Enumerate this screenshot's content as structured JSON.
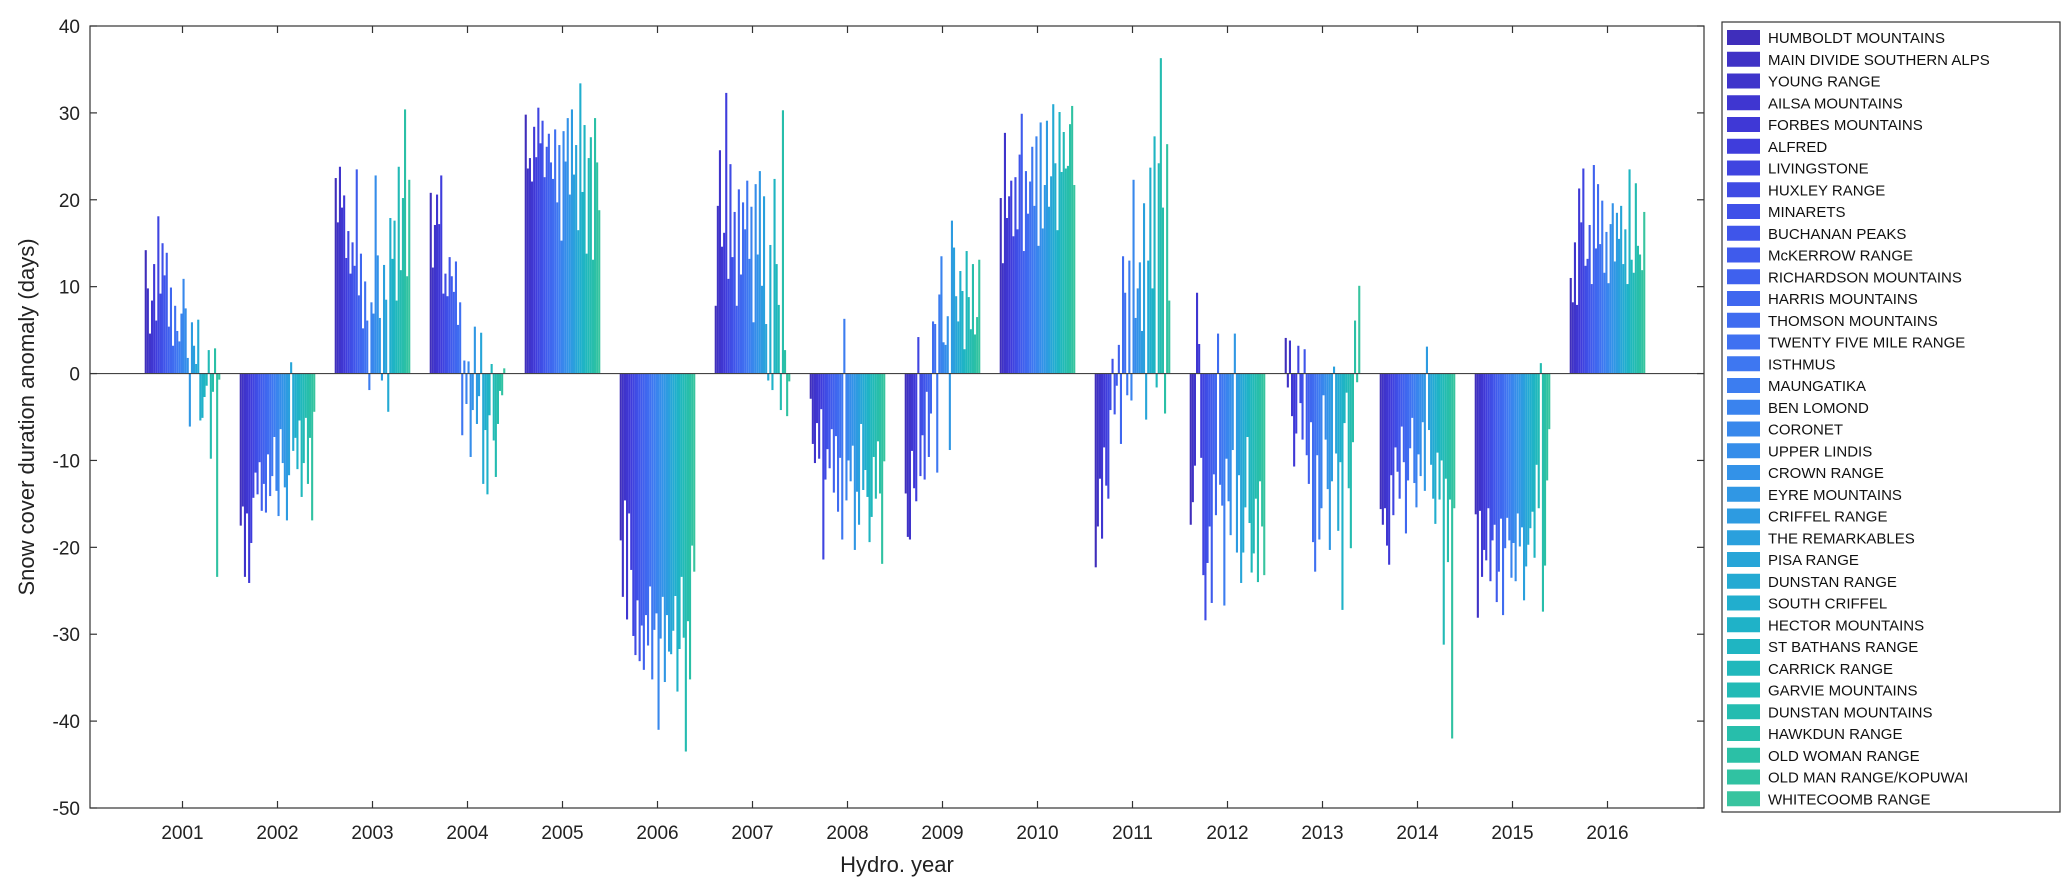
{
  "chart_data": {
    "type": "bar",
    "title": "",
    "xlabel": "Hydro. year",
    "ylabel": "Snow cover duration anomaly (days)",
    "ylim": [
      -50,
      40
    ],
    "yticks": [
      -50,
      -40,
      -30,
      -20,
      -10,
      0,
      10,
      20,
      30,
      40
    ],
    "grid": false,
    "legend_position": "right-outside",
    "categories": [
      "2001",
      "2002",
      "2003",
      "2004",
      "2005",
      "2006",
      "2007",
      "2008",
      "2009",
      "2010",
      "2011",
      "2012",
      "2013",
      "2014",
      "2015",
      "2016"
    ],
    "series": [
      {
        "name": "HUMBOLDT MOUNTAINS",
        "values": [
          14.2,
          -17.5,
          22.5,
          20.8,
          29.8,
          -19.2,
          7.8,
          -2.9,
          -13.8,
          20.2,
          -22.3,
          -17.4,
          4.1,
          -15.6,
          -16.2,
          11.0
        ]
      },
      {
        "name": "MAIN DIVIDE SOUTHERN ALPS",
        "values": [
          9.8,
          -15.3,
          17.4,
          12.2,
          23.6,
          -25.7,
          19.3,
          -8.1,
          -18.8,
          12.7,
          -17.6,
          -14.8,
          -1.6,
          -17.4,
          -28.1,
          8.2
        ]
      },
      {
        "name": "YOUNG RANGE",
        "values": [
          4.6,
          -23.4,
          23.8,
          17.1,
          24.8,
          -14.6,
          25.7,
          -10.3,
          -19.1,
          27.7,
          -12.1,
          -10.6,
          3.8,
          -15.5,
          -15.8,
          15.1
        ]
      },
      {
        "name": "AILSA MOUNTAINS",
        "values": [
          8.4,
          -16.1,
          19.1,
          20.6,
          22.1,
          -28.3,
          14.6,
          -5.7,
          -8.9,
          17.9,
          -19.0,
          9.3,
          -4.9,
          -19.8,
          -23.4,
          7.9
        ]
      },
      {
        "name": "FORBES MOUNTAINS",
        "values": [
          12.6,
          -24.1,
          20.5,
          17.2,
          28.4,
          -16.1,
          16.2,
          -9.8,
          -13.2,
          20.4,
          -8.5,
          3.4,
          -10.7,
          -22.0,
          -20.3,
          21.3
        ]
      },
      {
        "name": "ALFRED",
        "values": [
          6.1,
          -19.5,
          13.3,
          22.8,
          24.9,
          -22.6,
          32.3,
          -4.1,
          -14.7,
          22.2,
          -12.9,
          -9.7,
          -6.9,
          -11.7,
          -21.5,
          17.4
        ]
      },
      {
        "name": "LIVINGSTONE",
        "values": [
          18.1,
          -14.3,
          16.4,
          9.2,
          30.6,
          -30.2,
          10.9,
          -21.4,
          4.2,
          15.8,
          -14.4,
          -23.2,
          3.2,
          -16.3,
          -15.5,
          23.6
        ]
      },
      {
        "name": "HUXLEY RANGE",
        "values": [
          9.2,
          -11.4,
          11.5,
          11.5,
          26.5,
          -32.4,
          24.1,
          -12.2,
          -11.8,
          22.6,
          -4.2,
          -28.4,
          -3.4,
          -8.5,
          -23.9,
          12.4
        ]
      },
      {
        "name": "MINARETS",
        "values": [
          15.0,
          -13.9,
          15.1,
          8.9,
          29.1,
          -26.1,
          13.4,
          -8.7,
          -7.1,
          16.6,
          1.7,
          -21.8,
          -7.6,
          -11.3,
          -19.2,
          13.2
        ]
      },
      {
        "name": "BUCHANAN PEAKS",
        "values": [
          11.3,
          -10.2,
          12.4,
          13.4,
          22.6,
          -33.1,
          18.6,
          -10.9,
          -12.2,
          25.2,
          -4.7,
          -17.6,
          2.8,
          -14.4,
          -17.4,
          17.1
        ]
      },
      {
        "name": "McKERROW RANGE",
        "values": [
          13.9,
          -15.8,
          23.5,
          11.2,
          26.1,
          -29.0,
          7.8,
          -6.4,
          -2.1,
          29.9,
          -1.4,
          -26.4,
          -9.4,
          -6.1,
          -26.3,
          10.3
        ]
      },
      {
        "name": "RICHARDSON MOUNTAINS",
        "values": [
          5.4,
          -12.7,
          9.0,
          9.4,
          27.6,
          -34.1,
          21.2,
          -13.7,
          -9.6,
          14.1,
          3.3,
          -11.6,
          -12.7,
          -10.2,
          -22.8,
          24.0
        ]
      },
      {
        "name": "HARRIS MOUNTAINS",
        "values": [
          9.9,
          -16.0,
          13.8,
          12.9,
          24.3,
          -27.8,
          11.4,
          -7.2,
          -4.6,
          23.3,
          -8.1,
          -16.3,
          -5.6,
          -18.4,
          -16.7,
          14.4
        ]
      },
      {
        "name": "THOMSON MOUNTAINS",
        "values": [
          3.2,
          -9.3,
          5.2,
          5.6,
          22.4,
          -31.3,
          19.7,
          -15.9,
          6.0,
          18.4,
          13.5,
          4.6,
          -19.4,
          -12.3,
          -27.8,
          21.8
        ]
      },
      {
        "name": "TWENTY FIVE MILE RANGE",
        "values": [
          7.8,
          -14.1,
          10.6,
          8.2,
          28.1,
          -24.5,
          16.6,
          -9.7,
          5.7,
          22.1,
          9.3,
          -12.8,
          -22.8,
          -8.6,
          -20.1,
          14.9
        ]
      },
      {
        "name": "ISTHMUS",
        "values": [
          4.9,
          -11.8,
          6.1,
          -7.1,
          19.7,
          -35.2,
          22.2,
          -19.1,
          -11.4,
          26.1,
          -2.5,
          -15.2,
          -9.4,
          -5.1,
          -16.6,
          19.9
        ]
      },
      {
        "name": "MAUNGATIKA",
        "values": [
          3.7,
          -7.3,
          -1.9,
          1.5,
          26.3,
          -29.5,
          13.2,
          6.3,
          9.1,
          19.3,
          13.0,
          -26.7,
          -19.1,
          -12.6,
          -19.2,
          11.6
        ]
      },
      {
        "name": "BEN LOMOND",
        "values": [
          6.9,
          -13.5,
          8.2,
          -3.5,
          15.3,
          -27.6,
          19.2,
          -14.6,
          13.5,
          27.3,
          -3.1,
          -9.8,
          -15.5,
          -15.4,
          -23.5,
          16.3
        ]
      },
      {
        "name": "CORONET",
        "values": [
          10.9,
          -16.4,
          6.9,
          1.4,
          27.9,
          -41.0,
          5.9,
          -10.0,
          3.6,
          14.7,
          22.3,
          -14.7,
          -2.5,
          -9.3,
          -19.5,
          10.4
        ]
      },
      {
        "name": "UPPER LINDIS",
        "values": [
          7.5,
          -6.4,
          22.8,
          -9.6,
          24.4,
          -30.5,
          21.8,
          -12.4,
          3.3,
          28.9,
          6.4,
          -18.6,
          -7.6,
          -11.8,
          -23.9,
          17.2
        ]
      },
      {
        "name": "CROWN RANGE",
        "values": [
          1.8,
          -10.3,
          13.6,
          -4.2,
          29.4,
          -25.7,
          13.7,
          -8.3,
          6.6,
          16.7,
          9.8,
          -8.8,
          -13.3,
          -5.6,
          -16.1,
          19.6
        ]
      },
      {
        "name": "EYRE MOUNTAINS",
        "values": [
          -6.1,
          -13.1,
          6.4,
          5.4,
          20.6,
          -35.5,
          23.3,
          -20.3,
          -8.8,
          21.7,
          12.8,
          4.6,
          -20.3,
          -13.5,
          -19.9,
          12.9
        ]
      },
      {
        "name": "CRIFFEL RANGE",
        "values": [
          5.9,
          -16.9,
          -0.8,
          -5.8,
          30.4,
          -27.8,
          10.1,
          -13.6,
          17.6,
          29.1,
          4.9,
          -20.6,
          -12.4,
          3.1,
          -17.7,
          18.5
        ]
      },
      {
        "name": "THE REMARKABLES",
        "values": [
          3.2,
          -11.7,
          12.5,
          -2.6,
          22.9,
          -32.0,
          20.4,
          -17.4,
          14.5,
          19.2,
          19.6,
          -11.7,
          0.8,
          -6.5,
          -26.1,
          15.5
        ]
      },
      {
        "name": "PISA RANGE",
        "values": [
          1.1,
          1.3,
          8.5,
          4.7,
          26.3,
          -32.3,
          5.7,
          -5.8,
          8.9,
          22.7,
          -5.3,
          -24.1,
          -9.2,
          -10.5,
          -22.2,
          19.3
        ]
      },
      {
        "name": "DUNSTAN RANGE",
        "values": [
          6.2,
          -8.9,
          -4.4,
          -12.7,
          16.5,
          -29.6,
          -0.8,
          -13.4,
          6.0,
          31.0,
          13.0,
          -20.6,
          -18.1,
          -14.4,
          -19.7,
          12.6
        ]
      },
      {
        "name": "SOUTH CRIFFEL",
        "values": [
          -5.4,
          -7.4,
          17.9,
          -6.5,
          33.4,
          -25.6,
          14.8,
          -11.1,
          11.8,
          24.2,
          23.7,
          -15.4,
          -10.2,
          -17.3,
          -17.8,
          16.6
        ]
      },
      {
        "name": "HECTOR MOUNTAINS",
        "values": [
          -5.1,
          -11.0,
          13.2,
          -13.9,
          20.9,
          -36.6,
          -1.9,
          -14.2,
          9.5,
          16.5,
          9.8,
          -7.3,
          -27.2,
          -9.1,
          -15.9,
          10.3
        ]
      },
      {
        "name": "ST BATHANS RANGE",
        "values": [
          -2.7,
          -5.4,
          17.6,
          -4.8,
          28.6,
          -31.7,
          22.4,
          -19.4,
          2.8,
          30.1,
          27.3,
          -17.2,
          -5.7,
          -14.5,
          -21.2,
          23.5
        ]
      },
      {
        "name": "CARRICK RANGE",
        "values": [
          -1.4,
          -14.2,
          8.4,
          1.1,
          13.8,
          -23.4,
          12.6,
          -16.5,
          14.1,
          23.2,
          -1.6,
          -22.9,
          -2.2,
          -10.0,
          -10.5,
          13.1
        ]
      },
      {
        "name": "GARVIE MOUNTAINS",
        "values": [
          2.7,
          -10.3,
          23.8,
          -7.7,
          24.8,
          -30.4,
          7.9,
          -9.6,
          8.8,
          27.8,
          24.2,
          -20.7,
          -13.2,
          -31.2,
          -15.5,
          11.6
        ]
      },
      {
        "name": "DUNSTAN MOUNTAINS",
        "values": [
          -9.8,
          -5.1,
          11.9,
          -11.9,
          27.2,
          -43.5,
          -4.2,
          -14.4,
          5.1,
          23.6,
          36.3,
          -14.4,
          -20.1,
          -12.1,
          1.2,
          21.9
        ]
      },
      {
        "name": "HAWKDUN RANGE",
        "values": [
          -2.1,
          -12.7,
          20.2,
          -5.8,
          13.1,
          -28.5,
          30.3,
          -7.8,
          12.6,
          23.9,
          19.1,
          -24.0,
          -7.9,
          -21.7,
          -27.4,
          14.7
        ]
      },
      {
        "name": "OLD WOMAN RANGE",
        "values": [
          2.9,
          -7.4,
          30.4,
          -2.0,
          29.4,
          -35.2,
          2.7,
          -13.8,
          4.5,
          28.7,
          -4.6,
          -12.4,
          6.1,
          -14.5,
          -22.1,
          13.7
        ]
      },
      {
        "name": "OLD MAN RANGE/KOPUWAI",
        "values": [
          -23.4,
          -16.9,
          11.2,
          -2.5,
          24.3,
          -19.8,
          -4.9,
          -21.9,
          6.5,
          30.8,
          26.4,
          -17.6,
          -1.0,
          -42.0,
          -12.3,
          11.9
        ]
      },
      {
        "name": "WHITECOOMB RANGE",
        "values": [
          -0.7,
          -4.4,
          22.3,
          0.6,
          18.8,
          -22.8,
          -0.9,
          -10.1,
          13.1,
          21.7,
          8.4,
          -23.2,
          10.1,
          -15.5,
          -6.4,
          18.6
        ]
      }
    ],
    "colors": [
      "#3f2ebb",
      "#3f32c6",
      "#3f34cb",
      "#3f36d1",
      "#3f38d6",
      "#3f3ddc",
      "#3f44e0",
      "#3f4be4",
      "#3f50e8",
      "#3f55ea",
      "#3f5bec",
      "#3f61ee",
      "#3f67ef",
      "#3f6cf0",
      "#3f71f1",
      "#3e77f1",
      "#3c7df0",
      "#3a83ee",
      "#3888ec",
      "#358dea",
      "#3392e8",
      "#3097e4",
      "#2d9be1",
      "#2aa0dd",
      "#27a5d8",
      "#24aad3",
      "#21aece",
      "#1fb2c8",
      "#1fb5c2",
      "#20b8bc",
      "#22bab6",
      "#24bcb0",
      "#27beab",
      "#2bc0a6",
      "#30c2a2",
      "#38c49f"
    ]
  }
}
